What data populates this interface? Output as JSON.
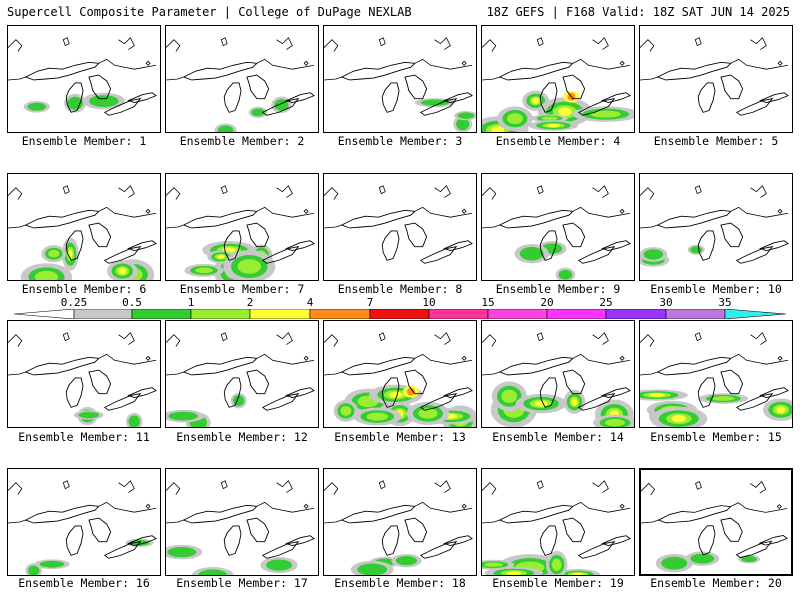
{
  "header": {
    "title_left": "Supercell Composite Parameter | College of DuPage NEXLAB",
    "title_right": "18Z GEFS | F168 Valid: 18Z SAT JUN 14 2025"
  },
  "colorbar": {
    "labels": [
      "0.25",
      "0.5",
      "1",
      "2",
      "4",
      "7",
      "10",
      "15",
      "20",
      "25",
      "30",
      "35"
    ],
    "colors": [
      "#ffffff",
      "#c8c8c8",
      "#33cc33",
      "#99ee33",
      "#ffff33",
      "#ff8c1a",
      "#ee1111",
      "#ff3399",
      "#ff44dd",
      "#ff33ff",
      "#9933ff",
      "#bb77dd",
      "#33eeee"
    ]
  },
  "legend_colors": {
    "light": "#c8c8c8",
    "green": "#33cc33",
    "lime": "#99ee33",
    "yellow": "#ffff33",
    "orange": "#ff8c1a",
    "red": "#ee1111"
  },
  "panels": [
    {
      "label": "Ensemble Member: 1",
      "intensity": "weak"
    },
    {
      "label": "Ensemble Member: 2",
      "intensity": "weak"
    },
    {
      "label": "Ensemble Member: 3",
      "intensity": "weak"
    },
    {
      "label": "Ensemble Member: 4",
      "intensity": "strong"
    },
    {
      "label": "Ensemble Member: 5",
      "intensity": "none"
    },
    {
      "label": "Ensemble Member: 6",
      "intensity": "moderate"
    },
    {
      "label": "Ensemble Member: 7",
      "intensity": "moderate"
    },
    {
      "label": "Ensemble Member: 8",
      "intensity": "none"
    },
    {
      "label": "Ensemble Member: 9",
      "intensity": "weak"
    },
    {
      "label": "Ensemble Member: 10",
      "intensity": "weak"
    },
    {
      "label": "Ensemble Member: 11",
      "intensity": "weak"
    },
    {
      "label": "Ensemble Member: 12",
      "intensity": "weak"
    },
    {
      "label": "Ensemble Member: 13",
      "intensity": "strong"
    },
    {
      "label": "Ensemble Member: 14",
      "intensity": "moderate"
    },
    {
      "label": "Ensemble Member: 15",
      "intensity": "moderate"
    },
    {
      "label": "Ensemble Member: 16",
      "intensity": "weak"
    },
    {
      "label": "Ensemble Member: 17",
      "intensity": "weak"
    },
    {
      "label": "Ensemble Member: 18",
      "intensity": "weak"
    },
    {
      "label": "Ensemble Member: 19",
      "intensity": "moderate"
    },
    {
      "label": "Ensemble Member: 20",
      "intensity": "weak"
    }
  ]
}
